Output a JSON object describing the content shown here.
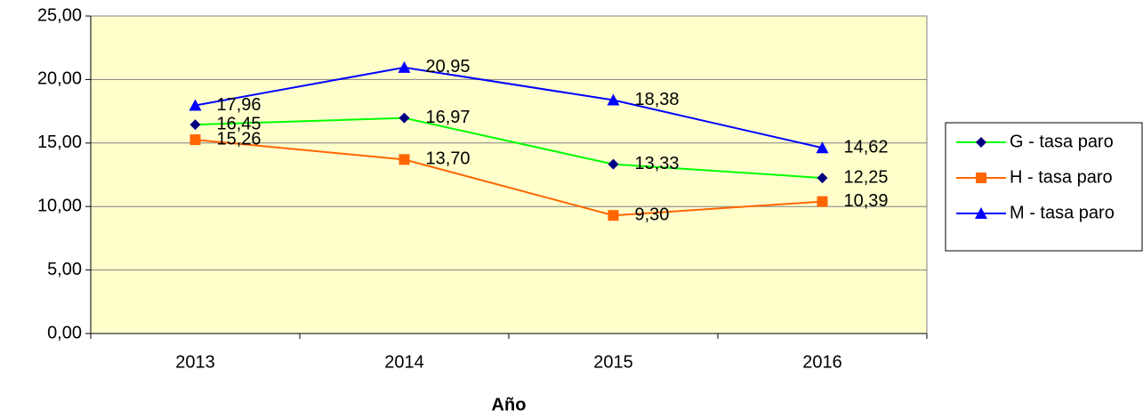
{
  "chart_data": {
    "type": "line",
    "x_label": "Año",
    "categories": [
      "2013",
      "2014",
      "2015",
      "2016"
    ],
    "series": [
      {
        "name": "G - tasa paro",
        "color": "#00ff00",
        "marker_color": "#000080",
        "marker": "diamond",
        "values": [
          16.45,
          16.97,
          13.33,
          12.25
        ],
        "value_labels": [
          "16,45",
          "16,97",
          "13,33",
          "12,25"
        ]
      },
      {
        "name": "H - tasa paro",
        "color": "#ff6600",
        "marker_color": "#ff6600",
        "marker": "square",
        "values": [
          15.26,
          13.7,
          9.3,
          10.39
        ],
        "value_labels": [
          "15,26",
          "13,70",
          "9,30",
          "10,39"
        ]
      },
      {
        "name": "M - tasa paro",
        "color": "#0000ff",
        "marker_color": "#0000ff",
        "marker": "triangle",
        "values": [
          17.96,
          20.95,
          18.38,
          14.62
        ],
        "value_labels": [
          "17,96",
          "20,95",
          "18,38",
          "14,62"
        ]
      }
    ],
    "ylim": [
      0,
      25
    ],
    "yticks": [
      {
        "value": 0,
        "label": "0,00"
      },
      {
        "value": 5,
        "label": "5,00"
      },
      {
        "value": 10,
        "label": "10,00"
      },
      {
        "value": 15,
        "label": "15,00"
      },
      {
        "value": 20,
        "label": "20,00"
      },
      {
        "value": 25,
        "label": "25,00"
      }
    ],
    "grid": true,
    "plot_background": "#ffffcc",
    "legend": "right"
  }
}
